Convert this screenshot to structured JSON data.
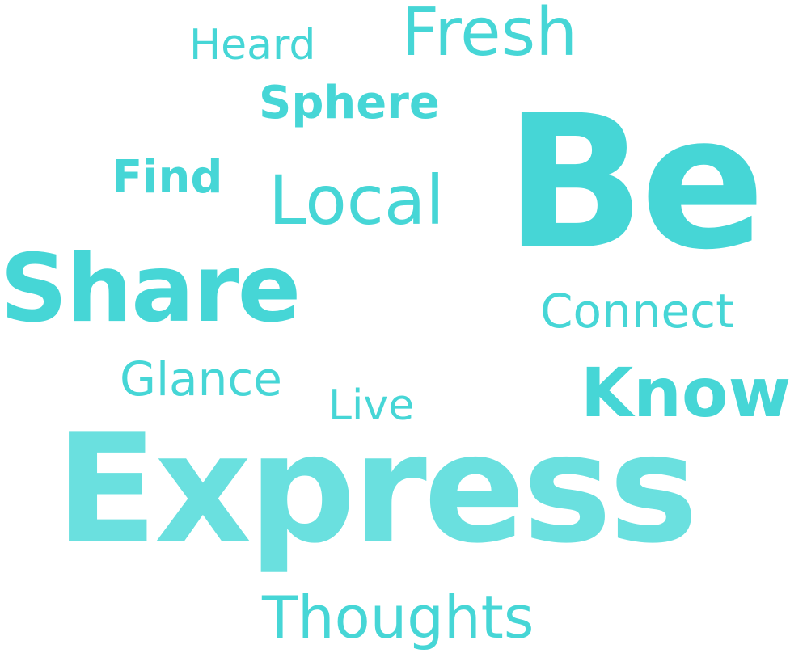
{
  "words": {
    "heard": "Heard",
    "fresh": "Fresh",
    "sphere": "Sphere",
    "find": "Find",
    "local": "Local",
    "be": "Be",
    "share": "Share",
    "connect": "Connect",
    "glance": "Glance",
    "live": "Live",
    "know": "Know",
    "express": "Express",
    "thoughts": "Thoughts"
  },
  "colors": {
    "primary": "#46d6d6",
    "express": "#6ae0df",
    "background": "#ffffff"
  }
}
